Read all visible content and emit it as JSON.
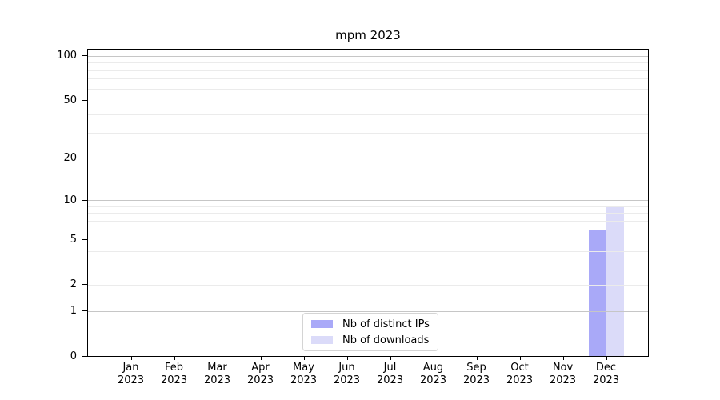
{
  "figure": {
    "title": "mpm 2023"
  },
  "chart_data": {
    "type": "bar",
    "title": "mpm 2023",
    "categories": [
      "Jan",
      "Feb",
      "Mar",
      "Apr",
      "May",
      "Jun",
      "Jul",
      "Aug",
      "Sep",
      "Oct",
      "Nov",
      "Dec"
    ],
    "x_tick_year": "2023",
    "series": [
      {
        "name": "Nb of distinct IPs",
        "color": "#a9a9f8",
        "values": [
          0,
          0,
          0,
          0,
          0,
          0,
          0,
          0,
          0,
          0,
          0,
          6
        ]
      },
      {
        "name": "Nb of downloads",
        "color": "#dbdbf9",
        "values": [
          0,
          0,
          0,
          0,
          0,
          0,
          0,
          0,
          0,
          0,
          0,
          9
        ]
      }
    ],
    "y_scale": "log1p",
    "ylim": [
      0,
      110
    ],
    "y_ticks": [
      100,
      50,
      20,
      10,
      5,
      2,
      1,
      0
    ],
    "grid_major": [
      1,
      10,
      100
    ],
    "grid_minor": [
      2,
      3,
      4,
      6,
      7,
      8,
      9,
      20,
      30,
      40,
      60,
      70,
      80,
      90
    ],
    "legend_position": "lower center",
    "colors": {
      "grid_major": "#c6c6c6",
      "grid_minor": "#ebebeb",
      "spine": "#000000",
      "text": "#000000",
      "legend_border": "#d4d4d4"
    }
  }
}
